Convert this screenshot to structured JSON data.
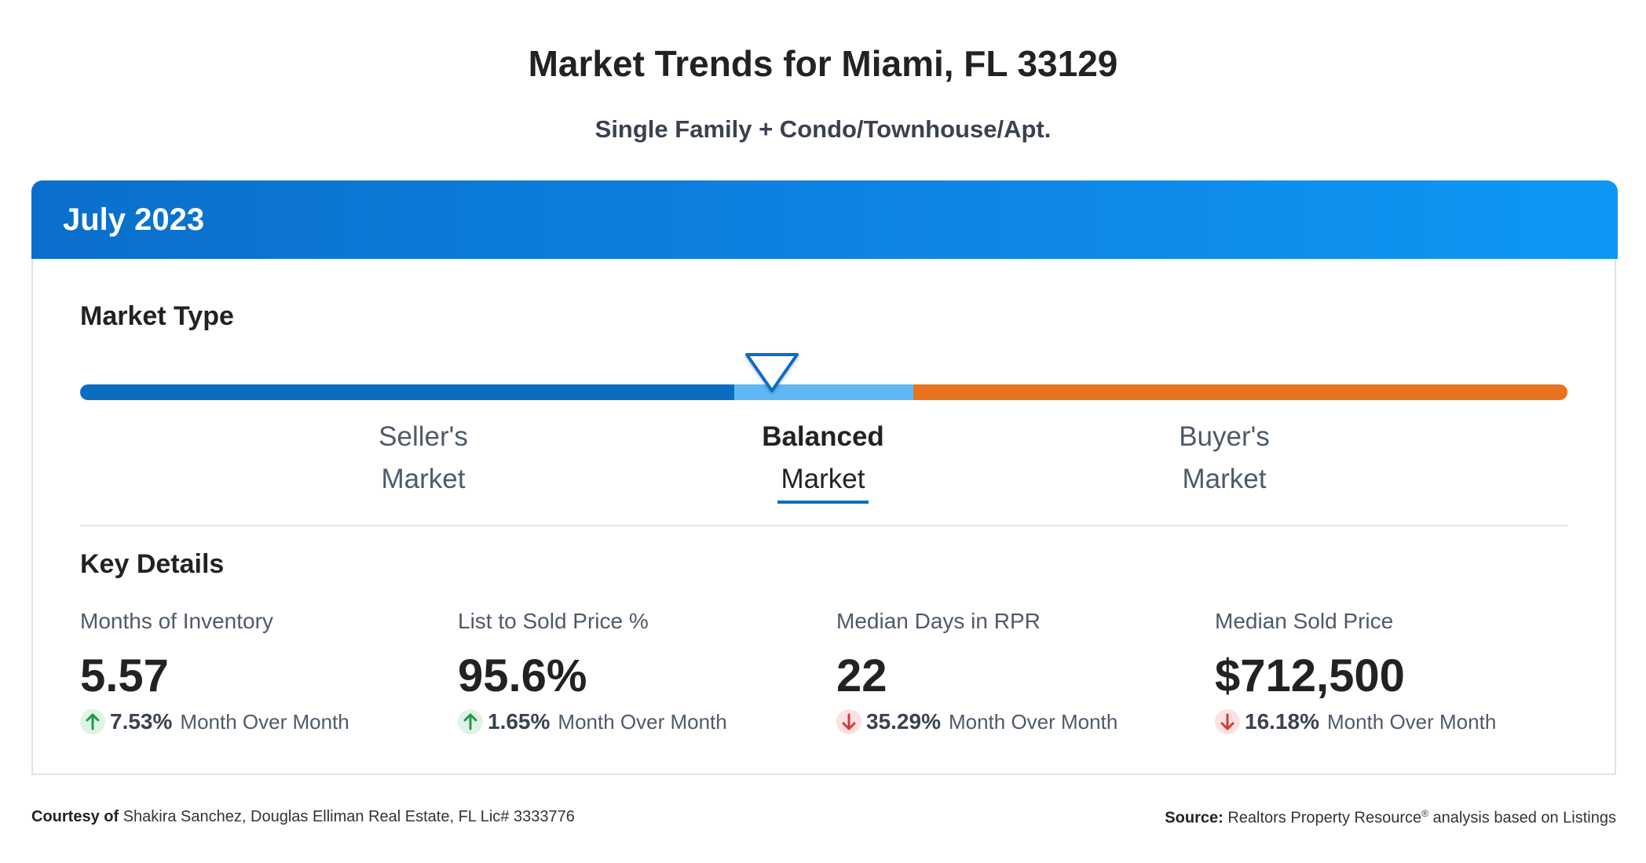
{
  "header": {
    "title": "Market Trends for Miami, FL 33129",
    "subtitle": "Single Family + Condo/Townhouse/Apt."
  },
  "card": {
    "month": "July 2023",
    "market_type": {
      "heading": "Market Type",
      "options": [
        {
          "line1": "Seller's",
          "line2": "Market"
        },
        {
          "line1": "Balanced",
          "line2": "Market"
        },
        {
          "line1": "Buyer's",
          "line2": "Market"
        }
      ],
      "selected": "Balanced Market",
      "colors": {
        "seller": "#0a6dc2",
        "balanced": "#5fb8f5",
        "buyer": "#e8731c"
      }
    },
    "key_details": {
      "heading": "Key Details",
      "metrics": [
        {
          "label": "Months of Inventory",
          "value": "5.57",
          "change": "7.53%",
          "direction": "up",
          "period": "Month Over Month"
        },
        {
          "label": "List to Sold Price %",
          "value": "95.6%",
          "change": "1.65%",
          "direction": "up",
          "period": "Month Over Month"
        },
        {
          "label": "Median Days in RPR",
          "value": "22",
          "change": "35.29%",
          "direction": "down",
          "period": "Month Over Month"
        },
        {
          "label": "Median Sold Price",
          "value": "$712,500",
          "change": "16.18%",
          "direction": "down",
          "period": "Month Over Month"
        }
      ]
    }
  },
  "footer": {
    "courtesy_label": "Courtesy of",
    "courtesy_text": "Shakira Sanchez, Douglas Elliman Real Estate, FL Lic# 3333776",
    "source_label": "Source:",
    "source_text_1": "Realtors Property Resource",
    "source_sup": "®",
    "source_text_2": "analysis based on Listings"
  }
}
